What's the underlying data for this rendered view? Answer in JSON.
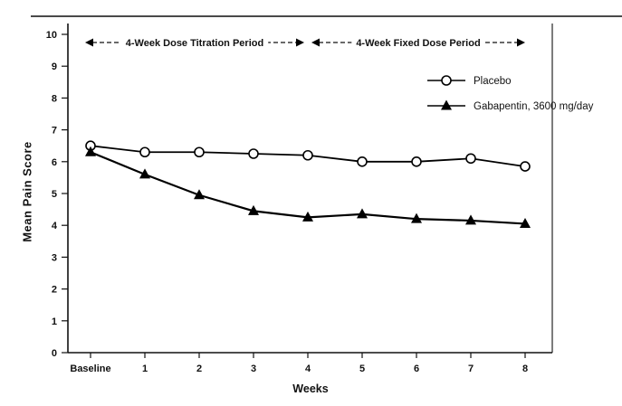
{
  "chart_data": {
    "type": "line",
    "xlabel": "Weeks",
    "ylabel": "Mean Pain Score",
    "x_labels": [
      "Baseline",
      "1",
      "2",
      "3",
      "4",
      "5",
      "6",
      "7",
      "8"
    ],
    "ylim": [
      0,
      10
    ],
    "yticks": [
      0,
      1,
      2,
      3,
      4,
      5,
      6,
      7,
      8,
      9,
      10
    ],
    "grid": false,
    "legend_position": "upper-right",
    "series": [
      {
        "name": "Placebo",
        "marker": "circle-open",
        "color": "#000000",
        "values": [
          6.5,
          6.3,
          6.3,
          6.25,
          6.2,
          6.0,
          6.0,
          6.1,
          5.85
        ]
      },
      {
        "name": "Gabapentin, 3600 mg/day",
        "marker": "triangle-filled",
        "color": "#000000",
        "values": [
          6.3,
          5.6,
          4.95,
          4.45,
          4.25,
          4.35,
          4.2,
          4.15,
          4.05
        ]
      }
    ],
    "annotations": [
      {
        "label": "4-Week Dose Titration Period",
        "from": "Baseline",
        "to": "4"
      },
      {
        "label": "4-Week Fixed Dose Period",
        "from": "4",
        "to": "8"
      }
    ]
  }
}
